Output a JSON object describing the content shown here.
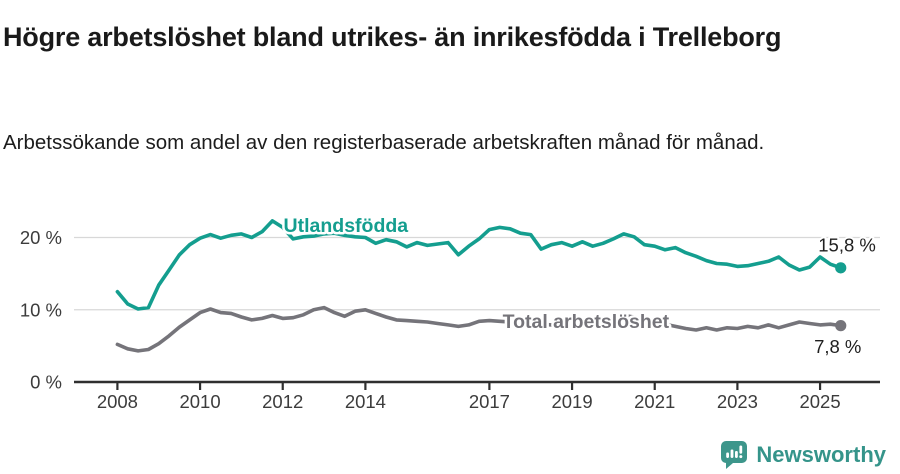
{
  "header": {
    "title": "Högre arbetslöshet bland utrikes- än inrikesfödda i Trelleborg",
    "subtitle": "Arbetssökande som andel av den registerbaserade arbetskraften månad för månad."
  },
  "footer": {
    "brand": "Newsworthy",
    "brand_color": "#35948a",
    "logo_icon": "speech-bubble-bar-chart-icon"
  },
  "chart_data": {
    "type": "line",
    "title": "Högre arbetslöshet bland utrikes- än inrikesfödda i Trelleborg",
    "subtitle": "Arbetssökande som andel av den registerbaserade arbetskraften månad för månad.",
    "xlabel": "",
    "ylabel": "",
    "xlim": [
      2006.95,
      2026.45
    ],
    "ylim": [
      0,
      24.6
    ],
    "grid": "horizontal",
    "grid_color": "#d8d8d8",
    "axis_color": "#2f2f2f",
    "tick_label_color": "#3c3c3c",
    "x_ticks": [
      2008,
      2010,
      2012,
      2014,
      2017,
      2019,
      2021,
      2023,
      2025
    ],
    "x_tick_labels": [
      "2008",
      "2010",
      "2012",
      "2014",
      "2017",
      "2019",
      "2021",
      "2023",
      "2025"
    ],
    "y_ticks": [
      0,
      10,
      20
    ],
    "y_tick_labels": [
      "0 %",
      "10 %",
      "20 %"
    ],
    "series": [
      {
        "name": "Utlandsfödda",
        "color": "#149e8f",
        "x_start": 2008.0,
        "x_step": 0.25,
        "values": [
          12.5,
          10.8,
          10.1,
          10.3,
          13.4,
          15.5,
          17.6,
          19.0,
          19.9,
          20.4,
          19.9,
          20.3,
          20.5,
          20.0,
          20.8,
          22.3,
          21.4,
          19.8,
          20.1,
          20.2,
          20.5,
          20.6,
          20.3,
          20.1,
          20.0,
          19.2,
          19.7,
          19.4,
          18.7,
          19.3,
          18.9,
          19.1,
          19.3,
          17.6,
          18.8,
          19.8,
          21.1,
          21.4,
          21.2,
          20.6,
          20.4,
          18.4,
          19.0,
          19.3,
          18.8,
          19.4,
          18.8,
          19.2,
          19.8,
          20.5,
          20.1,
          19.0,
          18.8,
          18.3,
          18.6,
          17.9,
          17.4,
          16.8,
          16.4,
          16.3,
          16.0,
          16.1,
          16.4,
          16.7,
          17.3,
          16.2,
          15.5,
          15.9,
          17.3,
          16.3,
          15.8
        ],
        "end_dot": true,
        "name_label": {
          "x": 2012.02,
          "y": 20.75,
          "anchor": "start"
        },
        "value_label": {
          "text": "15,8 %",
          "x": 2026.35,
          "y": 18.05,
          "anchor": "end"
        }
      },
      {
        "name": "Total arbetslöshet",
        "color": "#75747a",
        "x_start": 2008.0,
        "x_step": 0.25,
        "values": [
          5.2,
          4.6,
          4.3,
          4.5,
          5.3,
          6.4,
          7.6,
          8.6,
          9.6,
          10.1,
          9.6,
          9.5,
          9.0,
          8.6,
          8.8,
          9.2,
          8.8,
          8.9,
          9.3,
          10.0,
          10.3,
          9.6,
          9.1,
          9.8,
          10.0,
          9.5,
          9.0,
          8.6,
          8.5,
          8.4,
          8.3,
          8.1,
          7.9,
          7.7,
          7.9,
          8.4,
          8.5,
          8.4,
          8.3,
          8.2,
          8.1,
          8.0,
          7.9,
          7.9,
          8.0,
          8.1,
          8.3,
          8.6,
          8.9,
          9.2,
          9.0,
          8.6,
          8.3,
          8.0,
          7.7,
          7.4,
          7.2,
          7.5,
          7.2,
          7.5,
          7.4,
          7.7,
          7.5,
          7.9,
          7.5,
          7.9,
          8.3,
          8.1,
          7.9,
          8.0,
          7.8
        ],
        "end_dot": true,
        "name_label": {
          "x": 2017.32,
          "y": 7.45,
          "anchor": "start"
        },
        "value_label": {
          "text": "7,8 %",
          "x": 2026.0,
          "y": 4.0,
          "anchor": "end"
        }
      }
    ]
  }
}
